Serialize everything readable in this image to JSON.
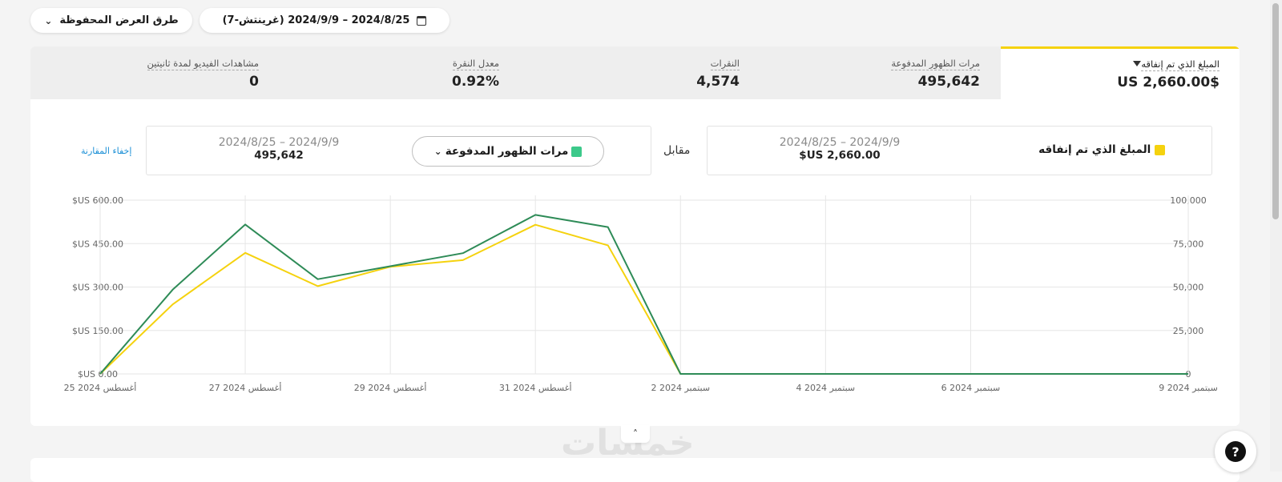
{
  "toolbar": {
    "date_range": "2024/8/25 – 2024/9/9 (غرينتش-7)",
    "saved_views": "طرق العرض المحفوظة"
  },
  "metrics": [
    {
      "label": "المبلغ الذي تم إنفاقه",
      "value": "$US 2,660.00",
      "selected": true
    },
    {
      "label": "مرات الظهور المدفوعة",
      "value": "495,642"
    },
    {
      "label": "النقرات",
      "value": "4,574"
    },
    {
      "label": "معدل النقرة",
      "value": "0.92%"
    },
    {
      "label": "مشاهدات الفيديو لمدة ثانيتين",
      "value": "0"
    }
  ],
  "comparison": {
    "primary": {
      "label": "المبلغ الذي تم إنفاقه",
      "range": "2024/8/25 – 2024/9/9",
      "value": "$US 2,660.00",
      "color": "#f5d20e"
    },
    "versus": "مقابل",
    "secondary": {
      "label": "مرات الظهور المدفوعة",
      "range": "2024/8/25 – 2024/9/9",
      "value": "495,642",
      "color": "#3cc98a"
    },
    "hide_link": "إخفاء المقارنة"
  },
  "chart_data": {
    "type": "line",
    "x": [
      "2024-08-25",
      "2024-08-26",
      "2024-08-27",
      "2024-08-28",
      "2024-08-29",
      "2024-08-30",
      "2024-08-31",
      "2024-09-01",
      "2024-09-02",
      "2024-09-03",
      "2024-09-04",
      "2024-09-05",
      "2024-09-06",
      "2024-09-07",
      "2024-09-08",
      "2024-09-09"
    ],
    "x_tick_labels": [
      "25 أغسطس 2024",
      "27 أغسطس 2024",
      "29 أغسطس 2024",
      "31 أغسطس 2024",
      "2 سبتمبر 2024",
      "4 سبتمبر 2024",
      "6 سبتمبر 2024",
      "9 سبتمبر 2024"
    ],
    "left_axis": {
      "ticks": [
        "$US 0.00",
        "$US 150.00",
        "$US 300.00",
        "$US 450.00",
        "$US 600.00"
      ],
      "ylim": [
        0,
        600
      ]
    },
    "right_axis": {
      "ticks": [
        "0",
        "25,000",
        "50,000",
        "75,000",
        "100,000"
      ],
      "ylim": [
        0,
        100000
      ]
    },
    "series": [
      {
        "name": "المبلغ الذي تم إنفاقه",
        "axis": "left",
        "color": "#f5d20e",
        "values": [
          0,
          240,
          418,
          303,
          370,
          393,
          515,
          444,
          0,
          0,
          0,
          0,
          0,
          0,
          0,
          0
        ]
      },
      {
        "name": "مرات الظهور المدفوعة",
        "axis": "right",
        "color": "#2e8b57",
        "values": [
          0,
          48500,
          86000,
          54500,
          62000,
          69500,
          91500,
          84500,
          0,
          0,
          0,
          0,
          0,
          0,
          0,
          0
        ]
      }
    ],
    "grid": true
  },
  "icons": {
    "calendar": "calendar-icon",
    "help": "help-chat-icon",
    "collapse": "chevron-up-icon"
  },
  "help_glyph": "?",
  "collapse_glyph": "˄",
  "watermark": "خمسات"
}
